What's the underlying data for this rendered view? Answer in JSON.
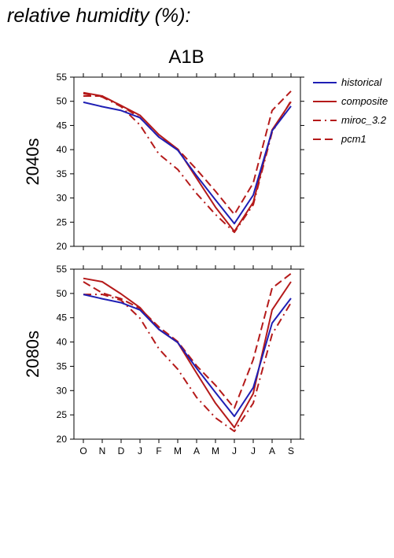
{
  "figure": {
    "title": "relative humidity (%):",
    "panel_title": "A1B"
  },
  "colors": {
    "historical": "#1f1fb4",
    "ensemble": "#b51a1a",
    "axis": "#000000",
    "background": "#ffffff"
  },
  "legend": {
    "placement": "right-of-top-panel",
    "entries": [
      {
        "label": "historical",
        "color": "#1f1fb4",
        "style": "solid"
      },
      {
        "label": "composite",
        "color": "#b51a1a",
        "style": "solid"
      },
      {
        "label": "miroc_3.2",
        "color": "#b51a1a",
        "style": "dashdot"
      },
      {
        "label": "pcm1",
        "color": "#b51a1a",
        "style": "dashed"
      }
    ]
  },
  "chart_data": [
    {
      "type": "line",
      "title": "A1B",
      "row_label": "2040s",
      "categories": [
        "O",
        "N",
        "D",
        "J",
        "F",
        "M",
        "A",
        "M",
        "J",
        "J",
        "A",
        "S"
      ],
      "ylim": [
        20,
        55
      ],
      "yticks": [
        20,
        25,
        30,
        35,
        40,
        45,
        50,
        55
      ],
      "grid": false,
      "series": [
        {
          "name": "historical",
          "style": "solid",
          "color": "#1f1fb4",
          "values": [
            49.8,
            48.9,
            48.1,
            46.6,
            42.6,
            39.9,
            34.6,
            29.6,
            24.7,
            30.6,
            43.9,
            49.0
          ]
        },
        {
          "name": "composite",
          "style": "solid",
          "color": "#b51a1a",
          "values": [
            51.8,
            51.1,
            49.1,
            47.1,
            43.1,
            40.1,
            34.1,
            28.1,
            23.1,
            29.1,
            44.1,
            49.9
          ]
        },
        {
          "name": "miroc_3.2",
          "style": "dashdot",
          "color": "#b51a1a",
          "values": [
            51.6,
            50.9,
            48.9,
            45.1,
            39.1,
            35.9,
            30.9,
            26.6,
            22.9,
            28.6,
            43.6,
            50.1
          ]
        },
        {
          "name": "pcm1",
          "style": "dashed",
          "color": "#b51a1a",
          "values": [
            51.1,
            51.1,
            49.1,
            46.6,
            42.6,
            40.1,
            35.9,
            31.4,
            26.6,
            33.1,
            48.1,
            52.1
          ]
        }
      ]
    },
    {
      "type": "line",
      "title": "",
      "row_label": "2080s",
      "categories": [
        "O",
        "N",
        "D",
        "J",
        "F",
        "M",
        "A",
        "M",
        "J",
        "J",
        "A",
        "S"
      ],
      "ylim": [
        20,
        55
      ],
      "yticks": [
        20,
        25,
        30,
        35,
        40,
        45,
        50,
        55
      ],
      "grid": false,
      "series": [
        {
          "name": "historical",
          "style": "solid",
          "color": "#1f1fb4",
          "values": [
            49.8,
            48.9,
            48.1,
            46.6,
            42.6,
            39.9,
            34.6,
            29.6,
            24.7,
            30.6,
            43.9,
            49.0
          ]
        },
        {
          "name": "composite",
          "style": "solid",
          "color": "#b51a1a",
          "values": [
            53.1,
            52.4,
            49.9,
            47.1,
            42.6,
            39.9,
            33.6,
            27.4,
            22.4,
            29.4,
            46.6,
            52.4
          ]
        },
        {
          "name": "miroc_3.2",
          "style": "dashdot",
          "color": "#b51a1a",
          "values": [
            49.8,
            49.8,
            48.6,
            44.9,
            38.6,
            34.4,
            28.6,
            24.4,
            21.6,
            27.4,
            41.6,
            48.1
          ]
        },
        {
          "name": "pcm1",
          "style": "dashed",
          "color": "#b51a1a",
          "values": [
            52.4,
            50.1,
            48.9,
            46.9,
            43.1,
            40.1,
            35.1,
            31.1,
            26.4,
            36.4,
            51.1,
            54.1
          ]
        }
      ]
    }
  ]
}
